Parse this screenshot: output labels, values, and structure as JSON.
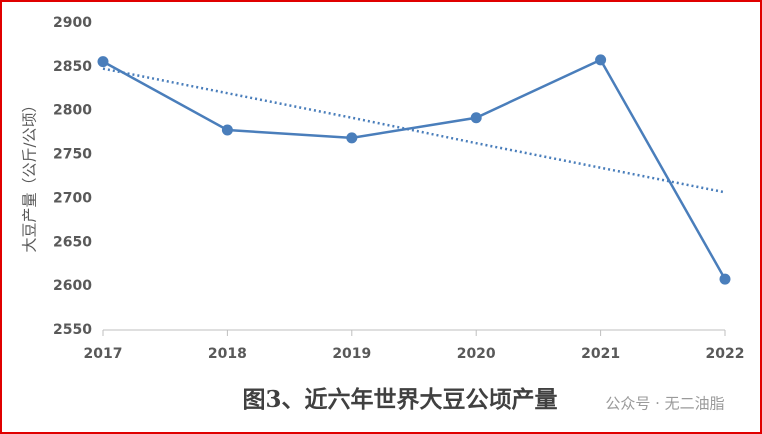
{
  "chart_data": {
    "type": "line",
    "title": "图3、近六年世界大豆公顷产量",
    "y_label": "大豆产量（公斤/公顷）",
    "watermark": "公众号 · 无二油脂",
    "categories": [
      "2017",
      "2018",
      "2019",
      "2020",
      "2021",
      "2022"
    ],
    "series": [
      {
        "color": "#4a7ebb",
        "style": "solid",
        "markers": true,
        "values": [
          2856,
          2778,
          2769,
          2792,
          2858,
          2608
        ]
      },
      {
        "color": "#4a7ebb",
        "style": "dotted",
        "markers": false,
        "values": [
          2848,
          2820,
          2792,
          2763,
          2735,
          2707
        ]
      }
    ],
    "ylim": [
      2550,
      2900
    ],
    "yticks": [
      2550,
      2600,
      2650,
      2700,
      2750,
      2800,
      2850,
      2900
    ],
    "grid": false
  }
}
